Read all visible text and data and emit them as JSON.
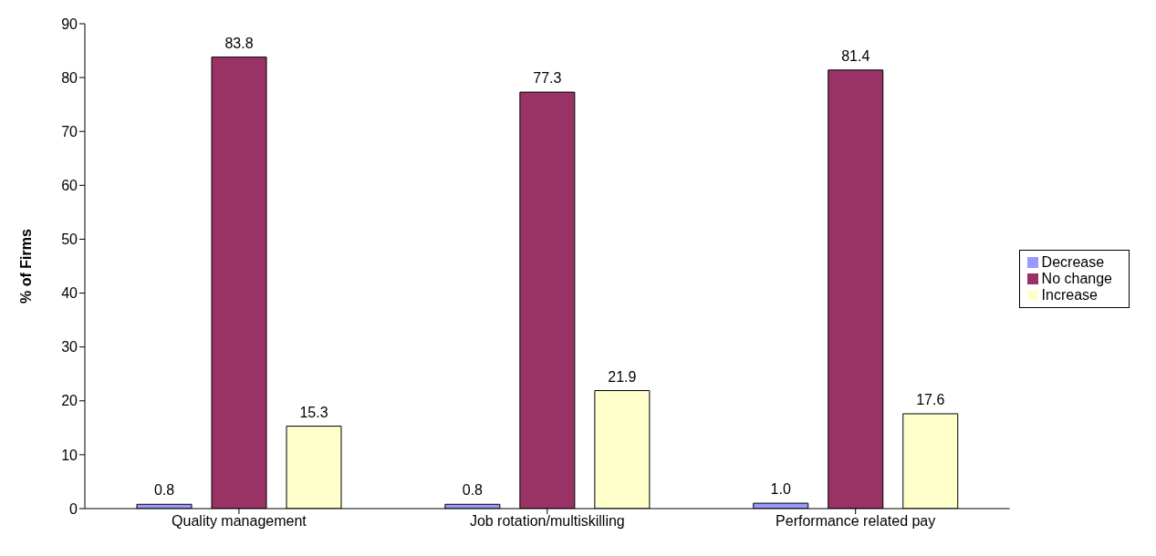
{
  "chart_data": {
    "type": "bar",
    "ylabel": "% of Firms",
    "categories": [
      "Quality management",
      "Job rotation/multiskilling",
      "Performance related pay"
    ],
    "series": [
      {
        "name": "Decrease",
        "color": "#9999ff",
        "values": [
          0.8,
          0.8,
          1.0
        ],
        "value_labels": [
          "0.8",
          "0.8",
          "1.0"
        ]
      },
      {
        "name": "No change",
        "color": "#993366",
        "values": [
          83.8,
          77.3,
          81.4
        ],
        "value_labels": [
          "83.8",
          "77.3",
          "81.4"
        ]
      },
      {
        "name": "Increase",
        "color": "#ffffcc",
        "values": [
          15.3,
          21.9,
          17.6
        ],
        "value_labels": [
          "15.3",
          "21.9",
          "17.6"
        ]
      }
    ],
    "ylim": [
      0,
      90
    ],
    "yticks": [
      0,
      10,
      20,
      30,
      40,
      50,
      60,
      70,
      80,
      90
    ],
    "grid": false,
    "legend": "right"
  }
}
